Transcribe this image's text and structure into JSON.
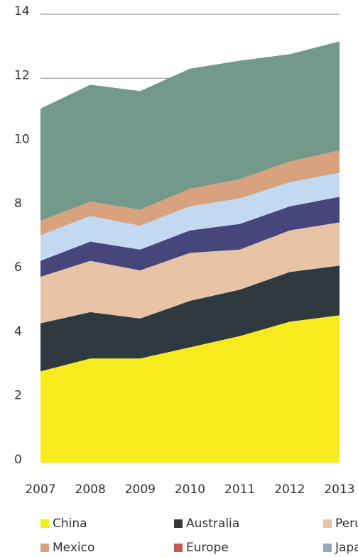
{
  "chart_data": {
    "type": "stacked_area",
    "categories": [
      "2007",
      "2008",
      "2009",
      "2010",
      "2011",
      "2012",
      "2013"
    ],
    "series": [
      {
        "name": "China",
        "color": "#f7ea1f",
        "values": [
          2.85,
          3.25,
          3.25,
          3.6,
          3.95,
          4.4,
          4.6
        ]
      },
      {
        "name": "Australia",
        "color": "#2f3a40",
        "values": [
          1.5,
          1.45,
          1.25,
          1.45,
          1.45,
          1.55,
          1.55
        ]
      },
      {
        "name": "Peru",
        "color": "#e8c3a6",
        "values": [
          1.45,
          1.6,
          1.5,
          1.5,
          1.25,
          1.3,
          1.35
        ]
      },
      {
        "color": "#46467c",
        "values": [
          0.5,
          0.6,
          0.65,
          0.7,
          0.8,
          0.75,
          0.8
        ]
      },
      {
        "color": "#c2d9f1",
        "values": [
          0.8,
          0.8,
          0.75,
          0.75,
          0.8,
          0.75,
          0.75
        ]
      },
      {
        "name": "Mexico",
        "color": "#d8a27f",
        "values": [
          0.45,
          0.45,
          0.5,
          0.55,
          0.6,
          0.65,
          0.7
        ]
      },
      {
        "color": "#72998a",
        "values": [
          3.5,
          3.65,
          3.7,
          3.75,
          3.7,
          3.35,
          3.4
        ]
      }
    ],
    "legend_extra": [
      {
        "name": "Europe",
        "color": "#c9564c"
      },
      {
        "name": "Japan",
        "color": "#97a9b9"
      }
    ],
    "ylim": [
      0,
      14
    ],
    "yticks": [
      0,
      2,
      4,
      6,
      8,
      10,
      12,
      14
    ],
    "grid": true
  }
}
